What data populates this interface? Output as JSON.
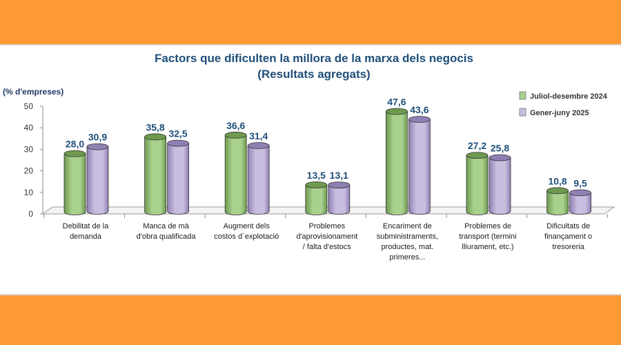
{
  "colors": {
    "band": "#ff9933",
    "series1": "#a9d18e",
    "series1_dark": "#6e9a4f",
    "series2": "#c9bde0",
    "series2_dark": "#8f80b3"
  },
  "chart_data": {
    "type": "bar",
    "title": "Factors que dificulten la millora de la marxa dels negocis",
    "subtitle": "(Resultats agregats)",
    "ylabel": "(% d'empreses)",
    "ylim": [
      0,
      50
    ],
    "yticks": [
      0,
      10,
      20,
      30,
      40,
      50
    ],
    "categories": [
      [
        "Debilitat de la",
        "demanda"
      ],
      [
        "Manca de mà",
        "d'obra qualificada"
      ],
      [
        "Augment dels",
        "costos d´explotació"
      ],
      [
        "Problemes",
        "d'aprovisionament",
        "/ falta d'estocs"
      ],
      [
        "Encariment de",
        "subministraments,",
        "productes, mat.",
        "primeres..."
      ],
      [
        "Problemes de",
        "transport (termini",
        "lliurament, etc.)"
      ],
      [
        "Dificultats de",
        "finançament o",
        "tresoreria"
      ]
    ],
    "series": [
      {
        "name": "Juliol-desembre 2024",
        "values": [
          28.0,
          35.8,
          36.6,
          13.5,
          47.6,
          27.2,
          10.8
        ],
        "labels": [
          "28,0",
          "35,8",
          "36,6",
          "13,5",
          "47,6",
          "27,2",
          "10,8"
        ]
      },
      {
        "name": "Gener-juny 2025",
        "values": [
          30.9,
          32.5,
          31.4,
          13.1,
          43.6,
          25.8,
          9.5
        ],
        "labels": [
          "30,9",
          "32,5",
          "31,4",
          "13,1",
          "43,6",
          "25,8",
          "9,5"
        ]
      }
    ],
    "legend_position": "top-right"
  }
}
